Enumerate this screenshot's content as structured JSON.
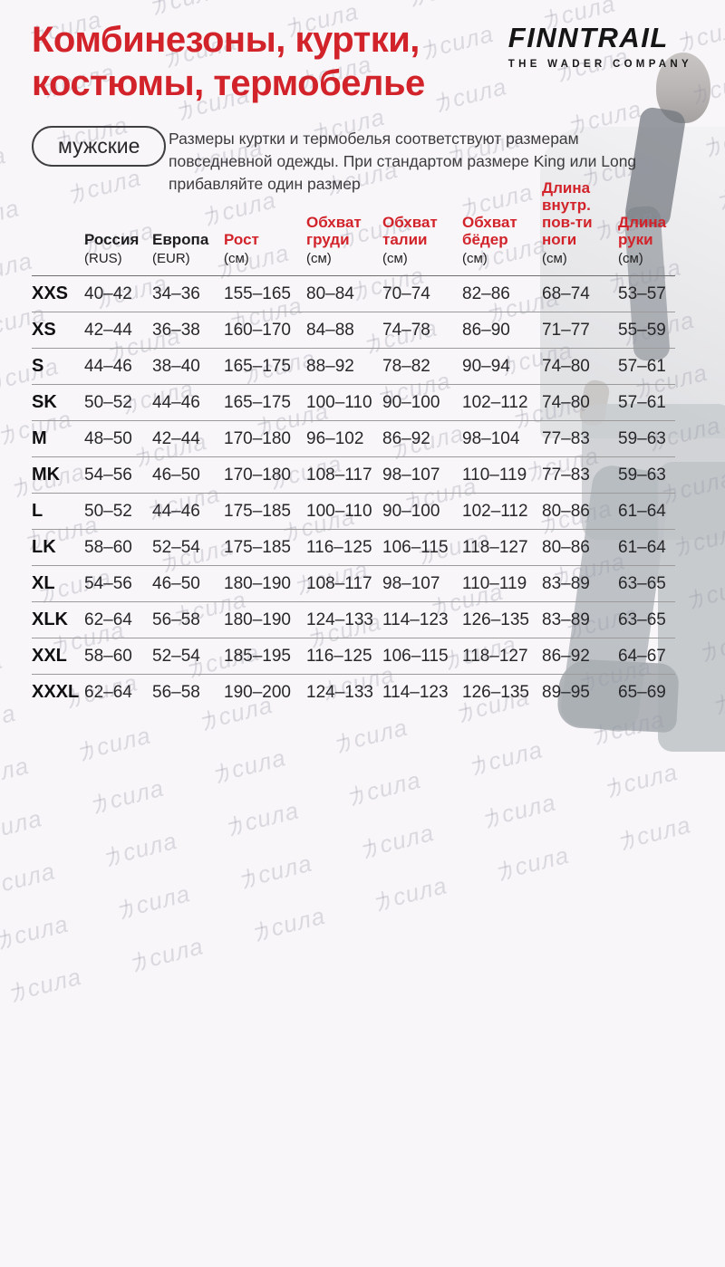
{
  "page": {
    "title_line1": "Комбинезоны, куртки,",
    "title_line2": "костюмы, термобелье",
    "badge": "мужские",
    "note_line1": "Размеры куртки и термобелья соответствуют размерам повседневной",
    "note_line2": "одежды. При стандартом размере King или Long прибавляйте один размер",
    "watermark": "力сила"
  },
  "logo": {
    "name": "FINNTRAIL",
    "tagline": "THE WADER COMPANY"
  },
  "colors": {
    "accent_red": "#d2232b",
    "text_dark": "#1d1d1f",
    "line_gray": "#9b9b9b"
  },
  "table": {
    "columns": [
      {
        "label": "Россия",
        "sub": "(RUS)",
        "red": false
      },
      {
        "label": "Европа",
        "sub": "(EUR)",
        "red": false
      },
      {
        "label": "Рост",
        "sub": "(см)",
        "red": true
      },
      {
        "label": "Обхват груди",
        "sub": "(см)",
        "red": true
      },
      {
        "label": "Обхват талии",
        "sub": "(см)",
        "red": true
      },
      {
        "label": "Обхват бёдер",
        "sub": "(см)",
        "red": true
      },
      {
        "label": "Длина внутр. пов-ти ноги",
        "sub": "(см)",
        "red": true
      },
      {
        "label": "Длина руки",
        "sub": "(см)",
        "red": true
      }
    ],
    "rows": [
      {
        "size": "XXS",
        "values": [
          "40–42",
          "34–36",
          "155–165",
          "80–84",
          "70–74",
          "82–86",
          "68–74",
          "53–57"
        ]
      },
      {
        "size": "XS",
        "values": [
          "42–44",
          "36–38",
          "160–170",
          "84–88",
          "74–78",
          "86–90",
          "71–77",
          "55–59"
        ]
      },
      {
        "size": "S",
        "values": [
          "44–46",
          "38–40",
          "165–175",
          "88–92",
          "78–82",
          "90–94",
          "74–80",
          "57–61"
        ]
      },
      {
        "size": "SK",
        "values": [
          "50–52",
          "44–46",
          "165–175",
          "100–110",
          "90–100",
          "102–112",
          "74–80",
          "57–61"
        ]
      },
      {
        "size": "M",
        "values": [
          "48–50",
          "42–44",
          "170–180",
          "96–102",
          "86–92",
          "98–104",
          "77–83",
          "59–63"
        ]
      },
      {
        "size": "MK",
        "values": [
          "54–56",
          "46–50",
          "170–180",
          "108–117",
          "98–107",
          "110–119",
          "77–83",
          "59–63"
        ]
      },
      {
        "size": "L",
        "values": [
          "50–52",
          "44–46",
          "175–185",
          "100–110",
          "90–100",
          "102–112",
          "80–86",
          "61–64"
        ]
      },
      {
        "size": "LK",
        "values": [
          "58–60",
          "52–54",
          "175–185",
          "116–125",
          "106–115",
          "118–127",
          "80–86",
          "61–64"
        ]
      },
      {
        "size": "XL",
        "values": [
          "54–56",
          "46–50",
          "180–190",
          "108–117",
          "98–107",
          "110–119",
          "83–89",
          "63–65"
        ]
      },
      {
        "size": "XLK",
        "values": [
          "62–64",
          "56–58",
          "180–190",
          "124–133",
          "114–123",
          "126–135",
          "83–89",
          "63–65"
        ]
      },
      {
        "size": "XXL",
        "values": [
          "58–60",
          "52–54",
          "185–195",
          "116–125",
          "106–115",
          "118–127",
          "86–92",
          "64–67"
        ]
      },
      {
        "size": "XXXL",
        "values": [
          "62–64",
          "56–58",
          "190–200",
          "124–133",
          "114–123",
          "126–135",
          "89–95",
          "65–69"
        ]
      }
    ]
  }
}
